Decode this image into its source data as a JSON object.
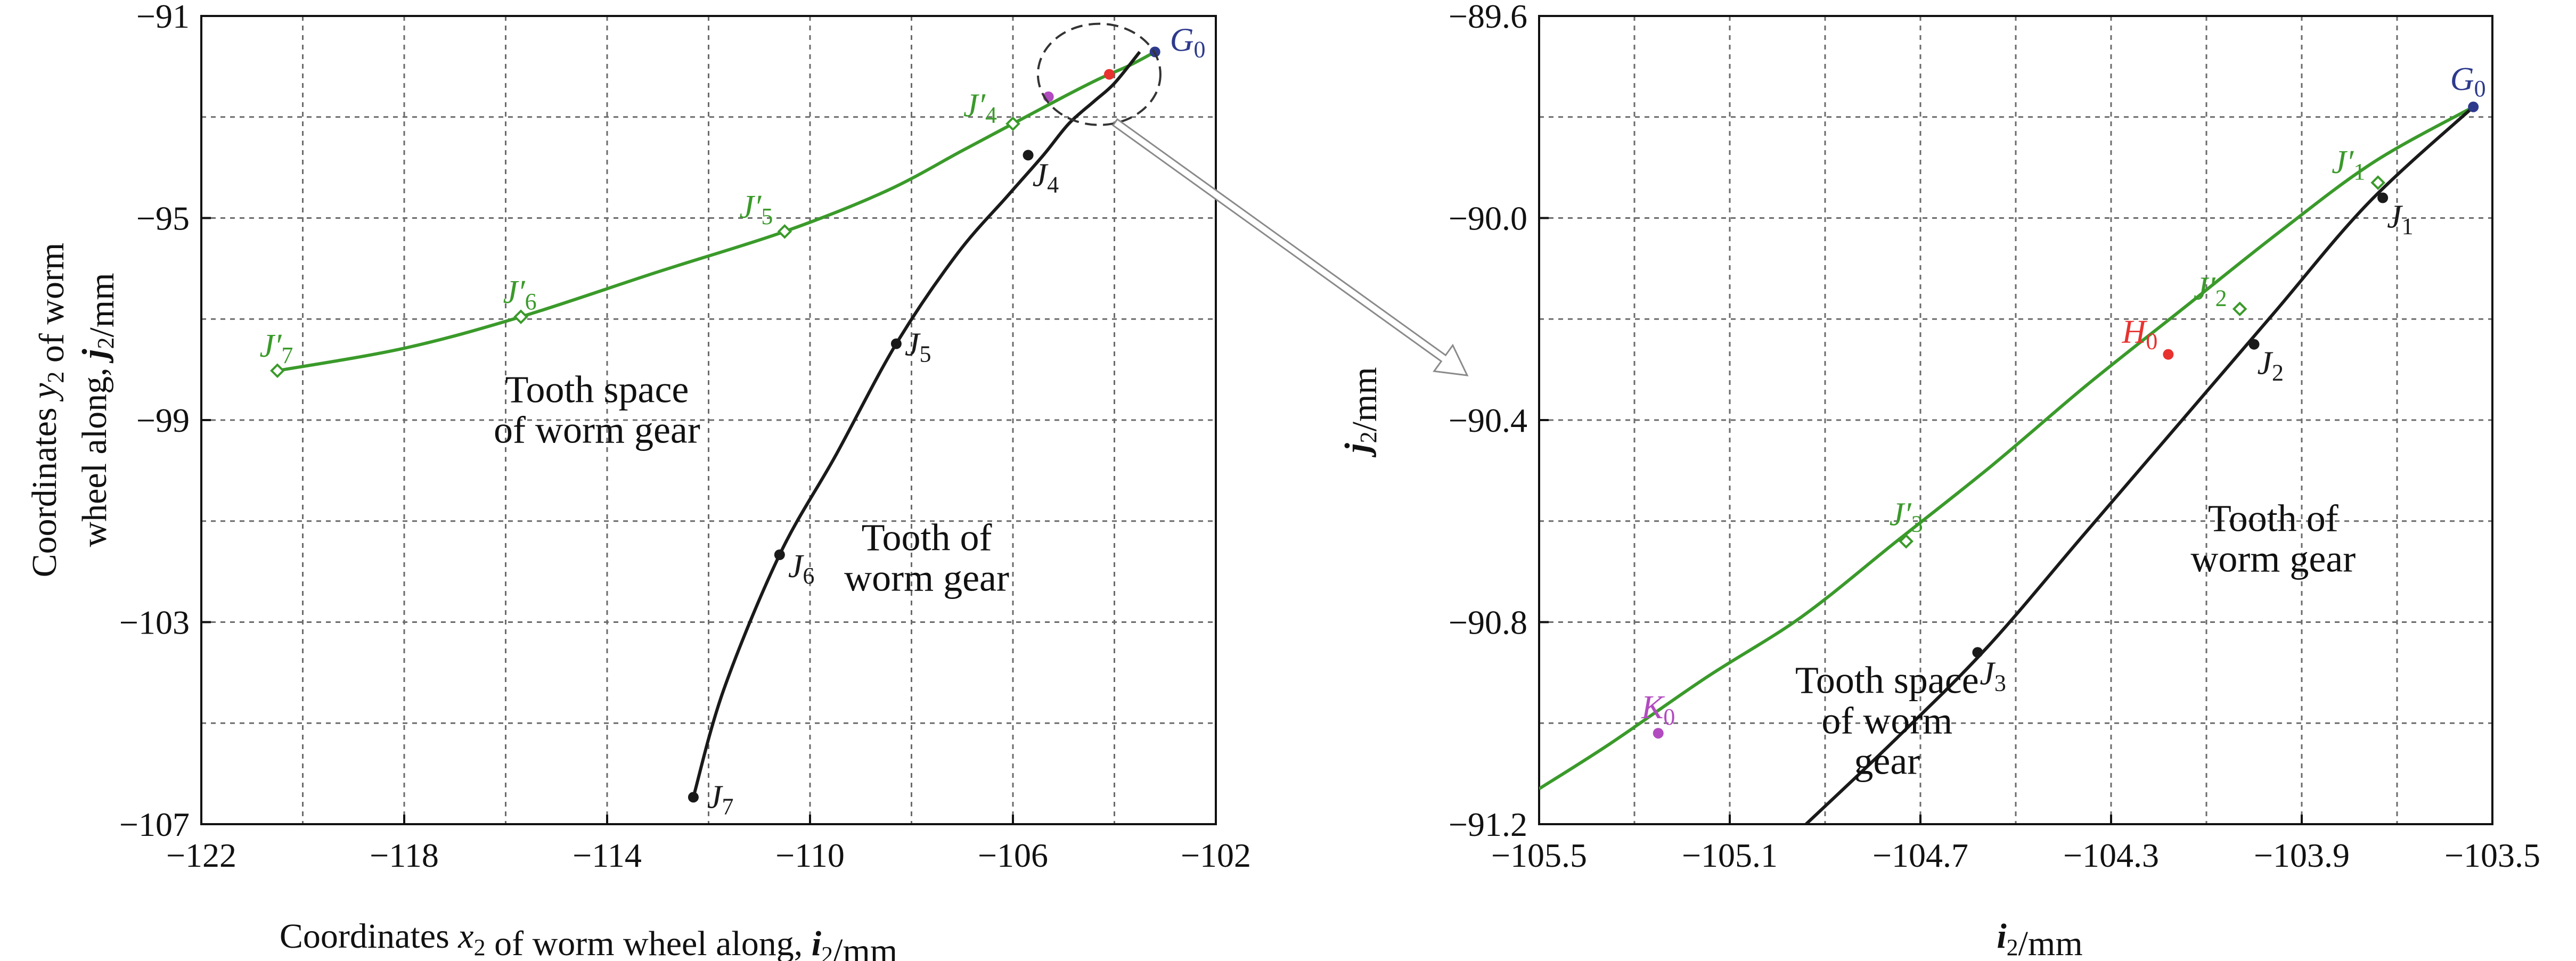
{
  "colors": {
    "green": "#3a9a2a",
    "black": "#1a1a1a",
    "red": "#e8322f",
    "blue": "#2d3a8c",
    "magenta": "#b24bc0",
    "grid": "#6b6b6b"
  },
  "chart_data": [
    {
      "type": "line",
      "xlabel": "Coordinates x2 of worm wheel along, i2/mm",
      "ylabel": "Coordinates y2 of worm wheel along, j2/mm",
      "xlim": [
        -122,
        -102
      ],
      "ylim": [
        -107,
        -89
      ],
      "xticks": [
        "−122",
        "−118",
        "−114",
        "−110",
        "−106",
        "−102"
      ],
      "yticks": [
        "−91",
        "−95",
        "−99",
        "−103",
        "−107"
      ],
      "grid": true,
      "series": [
        {
          "name": "green",
          "x": [
            -120.5,
            -118.0,
            -115.7,
            -113.0,
            -110.5,
            -108.5,
            -107.0,
            -106.0,
            -105.0,
            -104.3,
            -103.7,
            -103.2
          ],
          "y": [
            -96.9,
            -96.4,
            -95.7,
            -94.7,
            -93.8,
            -92.9,
            -92.0,
            -91.4,
            -90.8,
            -90.4,
            -90.1,
            -89.8
          ]
        },
        {
          "name": "black",
          "x": [
            -112.3,
            -111.7,
            -110.6,
            -109.5,
            -108.3,
            -107.1,
            -106.1,
            -105.4,
            -104.9,
            -104.4,
            -104.0,
            -103.5
          ],
          "y": [
            -106.4,
            -104.0,
            -101.0,
            -98.8,
            -96.3,
            -94.3,
            -93.0,
            -92.1,
            -91.4,
            -90.9,
            -90.5,
            -89.8
          ]
        }
      ],
      "points": [
        {
          "label": "J′4",
          "x": -106.0,
          "y": -91.4,
          "color": "green",
          "marker": "diamond",
          "dx": -30,
          "dy": -14,
          "anchor": "end"
        },
        {
          "label": "J′5",
          "x": -110.5,
          "y": -93.8,
          "color": "green",
          "marker": "diamond",
          "dx": -22,
          "dy": -26,
          "anchor": "end"
        },
        {
          "label": "J′6",
          "x": -115.7,
          "y": -95.7,
          "color": "green",
          "marker": "diamond",
          "dx": -2,
          "dy": -26,
          "anchor": "middle"
        },
        {
          "label": "J′7",
          "x": -120.5,
          "y": -96.9,
          "color": "green",
          "marker": "diamond",
          "dx": -2,
          "dy": -26,
          "anchor": "middle"
        },
        {
          "label": "J4",
          "x": -105.7,
          "y": -92.1,
          "color": "black",
          "marker": "dot",
          "dx": 8,
          "dy": 58,
          "anchor": "start"
        },
        {
          "label": "J5",
          "x": -108.3,
          "y": -96.3,
          "color": "black",
          "marker": "dot",
          "dx": 16,
          "dy": 22,
          "anchor": "start"
        },
        {
          "label": "J6",
          "x": -110.6,
          "y": -101.0,
          "color": "black",
          "marker": "dot",
          "dx": 16,
          "dy": 42,
          "anchor": "start"
        },
        {
          "label": "J7",
          "x": -112.3,
          "y": -106.4,
          "color": "black",
          "marker": "dot",
          "dx": 26,
          "dy": 20,
          "anchor": "start"
        },
        {
          "label": "G0",
          "x": -103.2,
          "y": -89.8,
          "color": "blue",
          "marker": "dot",
          "dx": 28,
          "dy": -2,
          "anchor": "start"
        },
        {
          "label": "",
          "x": -104.1,
          "y": -90.3,
          "color": "red",
          "marker": "dot"
        },
        {
          "label": "",
          "x": -105.3,
          "y": -90.8,
          "color": "magenta",
          "marker": "dot"
        }
      ],
      "annotations": [
        {
          "lines": [
            "Tooth space",
            "of worm gear"
          ],
          "x": -114.2,
          "y": -97.6
        },
        {
          "lines": [
            "Tooth of",
            "worm gear"
          ],
          "x": -107.7,
          "y": -100.9
        }
      ]
    },
    {
      "type": "line",
      "xlabel": "i2/mm",
      "ylabel": "j2/mm",
      "xlim": [
        -105.5,
        -103.5
      ],
      "ylim": [
        -91.2,
        -89.6
      ],
      "xticks": [
        "−105.5",
        "−105.1",
        "−104.7",
        "−104.3",
        "−103.9",
        "−103.5"
      ],
      "yticks": [
        "−89.6",
        "−90.0",
        "−90.4",
        "−90.8",
        "−91.2"
      ],
      "grid": true,
      "series": [
        {
          "name": "green",
          "x": [
            -105.5,
            -105.35,
            -105.15,
            -104.95,
            -104.75,
            -104.55,
            -104.35,
            -104.15,
            -103.95,
            -103.75,
            -103.54
          ],
          "y": [
            -91.13,
            -91.04,
            -90.91,
            -90.79,
            -90.64,
            -90.49,
            -90.33,
            -90.18,
            -90.03,
            -89.89,
            -89.78
          ]
        },
        {
          "name": "black",
          "x": [
            -104.94,
            -104.75,
            -104.56,
            -104.36,
            -104.16,
            -103.96,
            -103.76,
            -103.54
          ],
          "y": [
            -91.2,
            -91.03,
            -90.85,
            -90.63,
            -90.41,
            -90.19,
            -89.97,
            -89.78
          ]
        }
      ],
      "points": [
        {
          "label": "G0",
          "x": -103.54,
          "y": -89.78,
          "color": "blue",
          "marker": "dot",
          "dx": -10,
          "dy": -32,
          "anchor": "middle"
        },
        {
          "label": "J′1",
          "x": -103.74,
          "y": -89.93,
          "color": "green",
          "marker": "diamond",
          "dx": -24,
          "dy": -18,
          "anchor": "end"
        },
        {
          "label": "J′2",
          "x": -104.03,
          "y": -90.18,
          "color": "green",
          "marker": "diamond",
          "dx": -24,
          "dy": -18,
          "anchor": "end"
        },
        {
          "label": "J′3",
          "x": -104.73,
          "y": -90.64,
          "color": "green",
          "marker": "diamond",
          "dx": 0,
          "dy": -30,
          "anchor": "middle"
        },
        {
          "label": "J1",
          "x": -103.73,
          "y": -89.96,
          "color": "black",
          "marker": "dot",
          "dx": 8,
          "dy": 56,
          "anchor": "start"
        },
        {
          "label": "J2",
          "x": -104.0,
          "y": -90.25,
          "color": "black",
          "marker": "dot",
          "dx": 6,
          "dy": 56,
          "anchor": "start"
        },
        {
          "label": "J3",
          "x": -104.58,
          "y": -90.86,
          "color": "black",
          "marker": "dot",
          "dx": 4,
          "dy": 60,
          "anchor": "start"
        },
        {
          "label": "H0",
          "x": -104.18,
          "y": -90.27,
          "color": "red",
          "marker": "dot",
          "dx": -20,
          "dy": -22,
          "anchor": "end"
        },
        {
          "label": "K0",
          "x": -105.25,
          "y": -91.02,
          "color": "magenta",
          "marker": "dot",
          "dx": 0,
          "dy": -28,
          "anchor": "middle"
        }
      ],
      "annotations": [
        {
          "lines": [
            "Tooth space",
            "of worm",
            "gear"
          ],
          "x": -104.77,
          "y": -90.94
        },
        {
          "lines": [
            "Tooth of",
            "worm gear"
          ],
          "x": -103.96,
          "y": -90.62
        }
      ]
    }
  ]
}
